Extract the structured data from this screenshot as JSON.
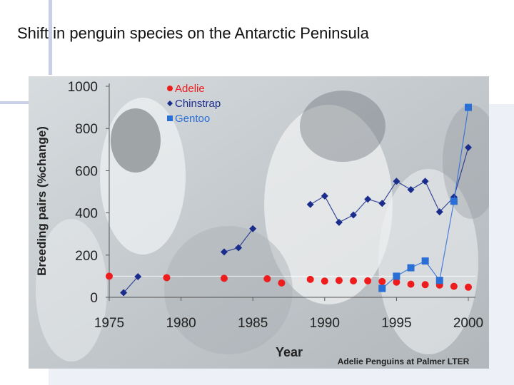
{
  "slide": {
    "title": "Shift in penguin species on the Antarctic Peninsula"
  },
  "colors": {
    "adelie": "#ee1c1c",
    "chinstrap": "#1b2d8c",
    "gentoo": "#2a6fd6",
    "axis_text": "#222222"
  },
  "chart_data": {
    "type": "scatter",
    "xlabel": "Year",
    "ylabel": "Breeding pairs (%change)",
    "credit": "Adelie Penguins at Palmer LTER",
    "xlim": [
      1975,
      2000
    ],
    "ylim": [
      0,
      1000
    ],
    "x_ticks": [
      1975,
      1980,
      1985,
      1990,
      1995,
      2000
    ],
    "y_ticks": [
      0,
      200,
      400,
      600,
      800,
      1000
    ],
    "legend_position": "top-left",
    "background": "penguin photograph",
    "series": [
      {
        "name": "Adelie",
        "marker": "circle",
        "connected": false,
        "color": "#ee1c1c",
        "points": [
          [
            1975,
            100
          ],
          [
            1979,
            93
          ],
          [
            1983,
            90
          ],
          [
            1986,
            88
          ],
          [
            1987,
            68
          ],
          [
            1989,
            85
          ],
          [
            1990,
            77
          ],
          [
            1991,
            80
          ],
          [
            1992,
            78
          ],
          [
            1993,
            78
          ],
          [
            1994,
            75
          ],
          [
            1995,
            72
          ],
          [
            1996,
            62
          ],
          [
            1997,
            60
          ],
          [
            1998,
            58
          ],
          [
            1999,
            52
          ],
          [
            2000,
            48
          ]
        ]
      },
      {
        "name": "Chinstrap",
        "marker": "diamond",
        "connected": true,
        "color": "#1b2d8c",
        "segments": [
          [
            [
              1976,
              22
            ],
            [
              1977,
              98
            ]
          ],
          [
            [
              1983,
              215
            ],
            [
              1984,
              235
            ],
            [
              1985,
              325
            ]
          ],
          [
            [
              1989,
              440
            ],
            [
              1990,
              480
            ],
            [
              1991,
              355
            ],
            [
              1992,
              390
            ],
            [
              1993,
              465
            ],
            [
              1994,
              445
            ],
            [
              1995,
              550
            ],
            [
              1996,
              510
            ],
            [
              1997,
              550
            ],
            [
              1998,
              405
            ],
            [
              1999,
              475
            ],
            [
              2000,
              710
            ]
          ]
        ]
      },
      {
        "name": "Gentoo",
        "marker": "square",
        "connected": true,
        "color": "#2a6fd6",
        "segments": [
          [
            [
              1994,
              42
            ],
            [
              1995,
              100
            ],
            [
              1996,
              140
            ],
            [
              1997,
              172
            ],
            [
              1998,
              80
            ],
            [
              1999,
              455
            ],
            [
              2000,
              900
            ]
          ]
        ]
      }
    ]
  }
}
